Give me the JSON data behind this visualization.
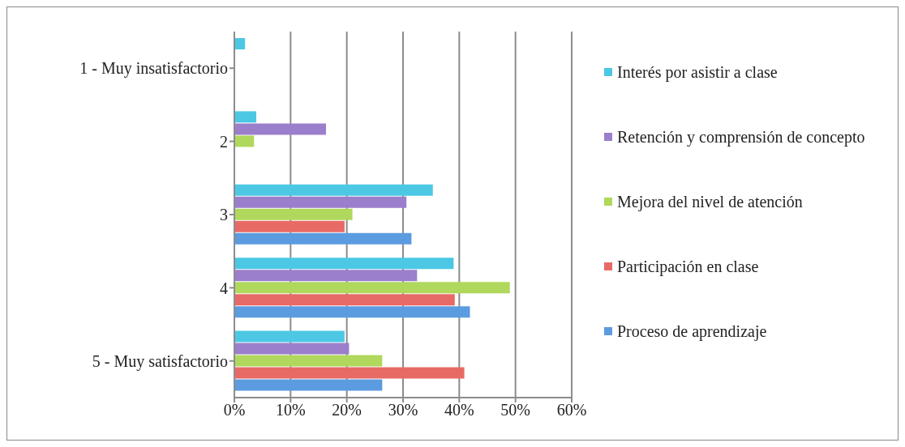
{
  "chart_data": {
    "type": "bar",
    "orientation": "horizontal",
    "categories": [
      "1 - Muy insatisfactorio",
      "2",
      "3",
      "4",
      "5 - Muy satisfactorio"
    ],
    "series": [
      {
        "name": "Interés por asistir a clase",
        "color": "#4cc8e4",
        "values": [
          1.9,
          3.9,
          35.3,
          39.0,
          19.6
        ]
      },
      {
        "name": "Retención y comprensión de concepto",
        "color": "#9b7fcc",
        "values": [
          0,
          16.3,
          30.6,
          32.5,
          20.4
        ]
      },
      {
        "name": "Mejora del nivel de atención",
        "color": "#b0d85c",
        "values": [
          0,
          3.5,
          21.0,
          49.0,
          26.3
        ]
      },
      {
        "name": "Participación en clase",
        "color": "#e86a66",
        "values": [
          0,
          0,
          19.6,
          39.2,
          40.9
        ]
      },
      {
        "name": "Proceso de aprendizaje",
        "color": "#5b9be0",
        "values": [
          0,
          0,
          31.5,
          41.9,
          26.3
        ]
      }
    ],
    "xlim": [
      0,
      60
    ],
    "xticks": [
      {
        "value": 0,
        "label": "0%"
      },
      {
        "value": 10,
        "label": "10%"
      },
      {
        "value": 20,
        "label": "20%"
      },
      {
        "value": 30,
        "label": "30%"
      },
      {
        "value": 40,
        "label": "40%"
      },
      {
        "value": 50,
        "label": "50%"
      },
      {
        "value": 60,
        "label": "60%"
      }
    ],
    "grid": "x",
    "legend": "right"
  }
}
